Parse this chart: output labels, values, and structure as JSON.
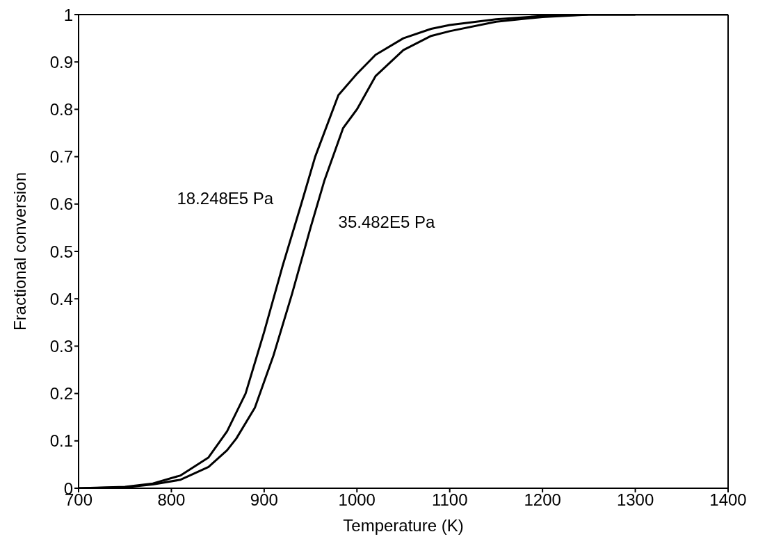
{
  "chart_data": {
    "type": "line",
    "xlabel": "Temperature (K)",
    "ylabel": "Fractional conversion",
    "xlim": [
      700,
      1400
    ],
    "xticks": [
      700,
      800,
      900,
      1000,
      1100,
      1200,
      1300,
      1400
    ],
    "ylim": [
      0,
      1
    ],
    "yticks": [
      0,
      0.1,
      0.2,
      0.3,
      0.4,
      0.5,
      0.6,
      0.7,
      0.8,
      0.9,
      1
    ],
    "legend": false,
    "marker": "none",
    "line_style": "solid",
    "series": [
      {
        "name": "18.248E5 Pa",
        "color": "#000000",
        "x": [
          700,
          750,
          780,
          810,
          840,
          860,
          880,
          900,
          920,
          940,
          955,
          980,
          1000,
          1020,
          1050,
          1080,
          1100,
          1150,
          1200,
          1250,
          1400
        ],
        "values": [
          0,
          0.003,
          0.01,
          0.027,
          0.065,
          0.12,
          0.2,
          0.33,
          0.47,
          0.6,
          0.7,
          0.83,
          0.875,
          0.915,
          0.95,
          0.97,
          0.978,
          0.99,
          0.997,
          1,
          1
        ]
      },
      {
        "name": "35.482E5 Pa",
        "color": "#000000",
        "x": [
          700,
          750,
          780,
          810,
          840,
          860,
          870,
          890,
          910,
          930,
          950,
          965,
          985,
          1000,
          1020,
          1050,
          1080,
          1100,
          1150,
          1200,
          1250,
          1300
        ],
        "values": [
          0,
          0.002,
          0.008,
          0.018,
          0.045,
          0.08,
          0.105,
          0.17,
          0.28,
          0.41,
          0.55,
          0.65,
          0.76,
          0.8,
          0.87,
          0.925,
          0.955,
          0.965,
          0.985,
          0.995,
          1,
          1
        ]
      }
    ]
  }
}
